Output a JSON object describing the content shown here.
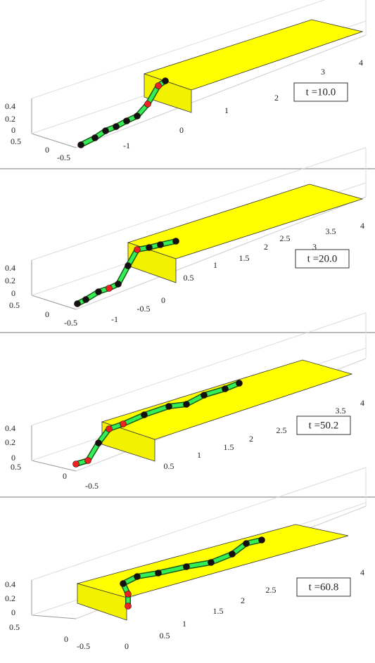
{
  "panels": [
    {
      "time_label": "t =10.0",
      "z_ticks": [
        "0.4",
        "0.2",
        "0"
      ],
      "y_ticks": [
        "0.5",
        "0",
        "-0.5"
      ],
      "x_ticks": [
        "-1",
        "0",
        "1",
        "2",
        "3",
        "4"
      ]
    },
    {
      "time_label": "t =20.0",
      "z_ticks": [
        "0.4",
        "0.2",
        "0"
      ],
      "y_ticks": [
        "0.5",
        "0",
        "-0.5"
      ],
      "x_ticks": [
        "-1",
        "-0.5",
        "0",
        "0.5",
        "1",
        "1.5",
        "2",
        "2.5",
        "3",
        "3.5",
        "4"
      ]
    },
    {
      "time_label": "t =50.2",
      "z_ticks": [
        "0.4",
        "0.2",
        "0"
      ],
      "y_ticks": [
        "0.5",
        "0",
        "-0.5"
      ],
      "x_ticks": [
        "0.5",
        "1",
        "1.5",
        "2",
        "2.5",
        "3.5",
        "4"
      ]
    },
    {
      "time_label": "t =60.8",
      "z_ticks": [
        "0.4",
        "0.2",
        "0"
      ],
      "y_ticks": [
        "0.5",
        "0",
        "-0.5"
      ],
      "x_ticks": [
        "0",
        "0.5",
        "1",
        "1.5",
        "2",
        "2.5",
        "4"
      ]
    }
  ]
}
